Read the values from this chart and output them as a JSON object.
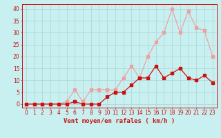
{
  "title": "",
  "xlabel": "Vent moyen/en rafales ( km/h )",
  "ylabel": "",
  "background_color": "#c8f0f0",
  "grid_color": "#b0d8d8",
  "x_ticks": [
    0,
    1,
    2,
    3,
    4,
    5,
    6,
    7,
    8,
    9,
    10,
    11,
    12,
    13,
    14,
    15,
    16,
    17,
    18,
    19,
    20,
    21,
    22,
    23
  ],
  "y_ticks": [
    0,
    5,
    10,
    15,
    20,
    25,
    30,
    35,
    40
  ],
  "ylim": [
    -1.5,
    42
  ],
  "xlim": [
    -0.5,
    23.5
  ],
  "line1_x": [
    0,
    1,
    2,
    3,
    4,
    5,
    6,
    7,
    8,
    9,
    10,
    11,
    12,
    13,
    14,
    15,
    16,
    17,
    18,
    19,
    20,
    21,
    22,
    23
  ],
  "line1_y": [
    0,
    0,
    0,
    0,
    0,
    1,
    6,
    1,
    6,
    6,
    6,
    6,
    11,
    16,
    11,
    20,
    26,
    30,
    40,
    30,
    39,
    32,
    31,
    20
  ],
  "line2_x": [
    0,
    1,
    2,
    3,
    4,
    5,
    6,
    7,
    8,
    9,
    10,
    11,
    12,
    13,
    14,
    15,
    16,
    17,
    18,
    19,
    20,
    21,
    22,
    23
  ],
  "line2_y": [
    0,
    0,
    0,
    0,
    0,
    0,
    1,
    0,
    0,
    0,
    3,
    5,
    5,
    8,
    11,
    11,
    16,
    11,
    13,
    15,
    11,
    10,
    12,
    9
  ],
  "line1_color": "#f0a0a0",
  "line2_color": "#cc1010",
  "marker_size": 2.5,
  "line_width": 0.9,
  "tick_fontsize": 5.5,
  "xlabel_fontsize": 6.5
}
